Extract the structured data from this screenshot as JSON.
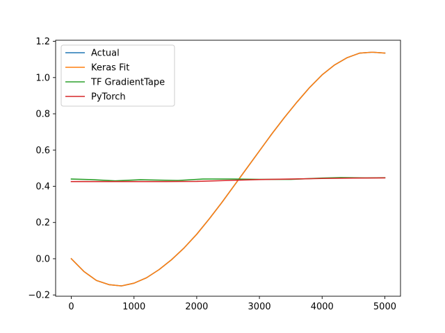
{
  "chart_data": {
    "type": "line",
    "title": "",
    "xlabel": "",
    "ylabel": "",
    "xlim": [
      -250,
      5250
    ],
    "ylim": [
      -0.207,
      1.206
    ],
    "xticks": [
      0,
      1000,
      2000,
      3000,
      4000,
      5000
    ],
    "xtick_labels": [
      "0",
      "1000",
      "2000",
      "3000",
      "4000",
      "5000"
    ],
    "yticks": [
      -0.2,
      0.0,
      0.2,
      0.4,
      0.6,
      0.8,
      1.0,
      1.2
    ],
    "ytick_labels": [
      "−0.2",
      "0.0",
      "0.2",
      "0.4",
      "0.6",
      "0.8",
      "1.0",
      "1.2"
    ],
    "grid": false,
    "legend_position": "upper-left",
    "series": [
      {
        "name": "Actual",
        "color": "#1f77b4",
        "x": [
          0,
          200,
          400,
          600,
          800,
          1000,
          1200,
          1400,
          1600,
          1800,
          2000,
          2200,
          2400,
          2600,
          2800,
          3000,
          3200,
          3400,
          3600,
          3800,
          4000,
          4200,
          4400,
          4600,
          4800,
          5000
        ],
        "y": [
          0.0,
          -0.07,
          -0.12,
          -0.143,
          -0.15,
          -0.135,
          -0.105,
          -0.06,
          -0.005,
          0.06,
          0.135,
          0.22,
          0.31,
          0.405,
          0.5,
          0.595,
          0.69,
          0.78,
          0.865,
          0.945,
          1.015,
          1.07,
          1.11,
          1.135,
          1.14,
          1.135
        ]
      },
      {
        "name": "Keras Fit",
        "color": "#ff7f0e",
        "x": [
          0,
          200,
          400,
          600,
          800,
          1000,
          1200,
          1400,
          1600,
          1800,
          2000,
          2200,
          2400,
          2600,
          2800,
          3000,
          3200,
          3400,
          3600,
          3800,
          4000,
          4200,
          4400,
          4600,
          4800,
          5000
        ],
        "y": [
          0.0,
          -0.07,
          -0.12,
          -0.143,
          -0.15,
          -0.135,
          -0.105,
          -0.06,
          -0.005,
          0.06,
          0.135,
          0.22,
          0.31,
          0.405,
          0.5,
          0.595,
          0.69,
          0.78,
          0.865,
          0.945,
          1.015,
          1.07,
          1.11,
          1.135,
          1.14,
          1.135
        ]
      },
      {
        "name": "TF GradientTape",
        "color": "#2ca02c",
        "x": [
          0,
          300,
          700,
          1100,
          1700,
          2100,
          2600,
          3000,
          3500,
          4000,
          4300,
          4700,
          5000
        ],
        "y": [
          0.44,
          0.437,
          0.43,
          0.436,
          0.432,
          0.44,
          0.44,
          0.438,
          0.438,
          0.445,
          0.448,
          0.446,
          0.447
        ]
      },
      {
        "name": "PyTorch",
        "color": "#d62728",
        "x": [
          0,
          500,
          1000,
          1500,
          2000,
          2500,
          3000,
          3500,
          4000,
          4500,
          5000
        ],
        "y": [
          0.426,
          0.426,
          0.426,
          0.426,
          0.427,
          0.432,
          0.437,
          0.44,
          0.443,
          0.445,
          0.446
        ]
      }
    ]
  }
}
